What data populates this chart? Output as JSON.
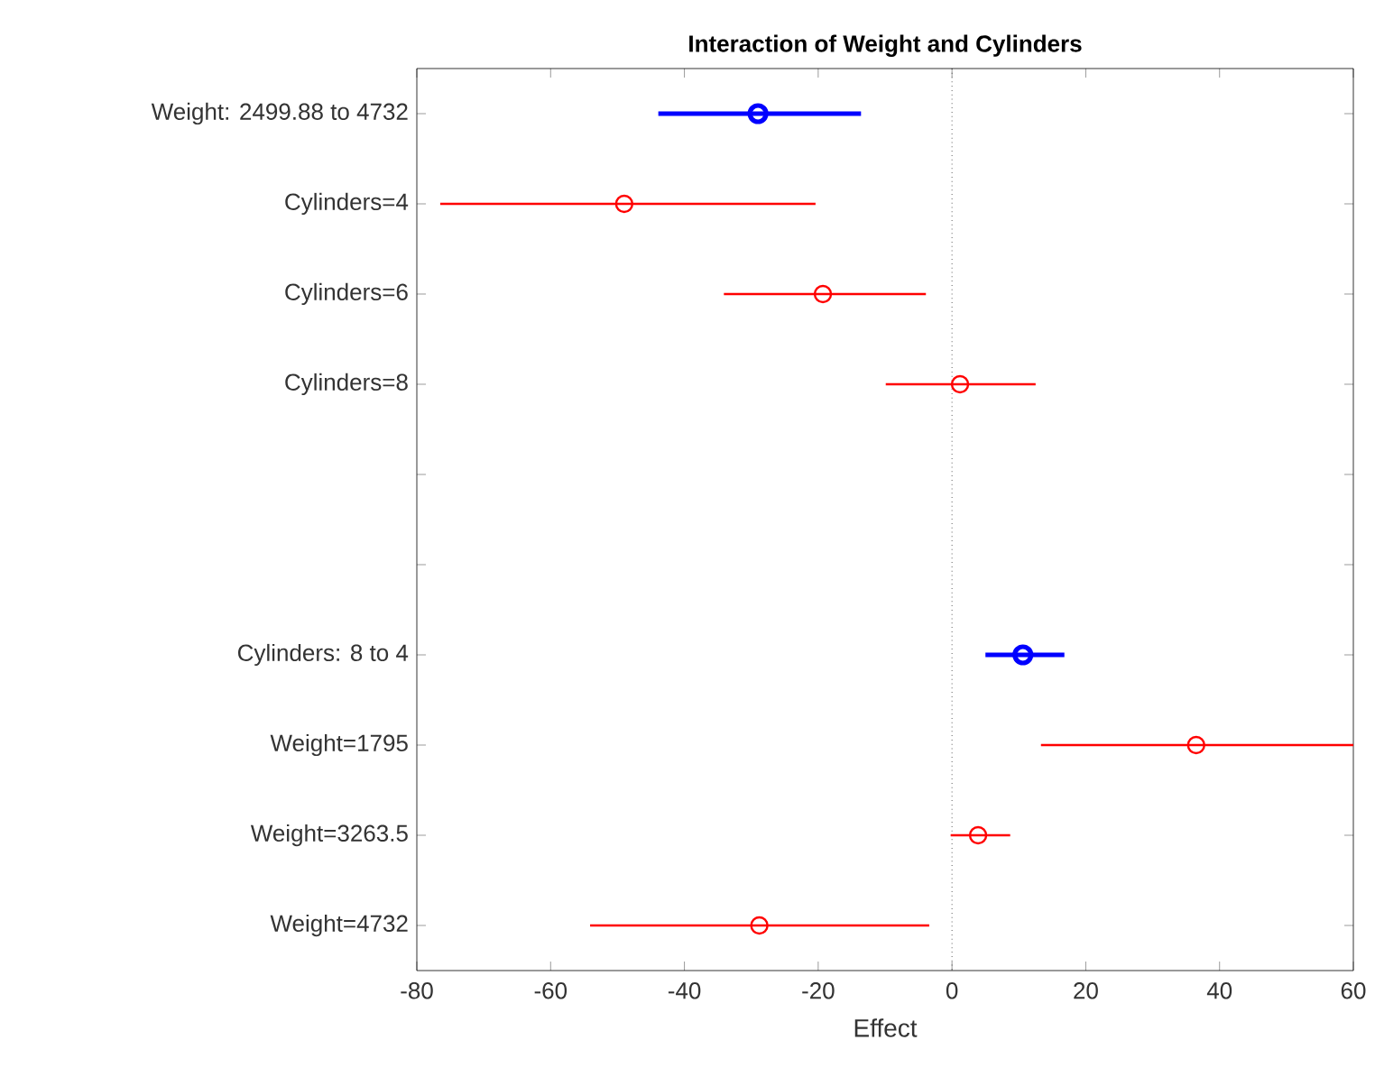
{
  "chart_data": {
    "type": "scatter",
    "orientation": "horizontal",
    "title": "Interaction of Weight and Cylinders",
    "xlabel": "Effect",
    "categories": [
      "Weight: 2499.88 to 4732",
      "Cylinders=4",
      "Cylinders=6",
      "Cylinders=8",
      null,
      null,
      "Cylinders: 8 to 4",
      "Weight=1795",
      "Weight=3263.5",
      "Weight=4732"
    ],
    "series": [
      {
        "color": "#0000ff",
        "values": [
          -29.0,
          null,
          null,
          null,
          null,
          null,
          10.6,
          null,
          null,
          null
        ],
        "errors": [
          [
            -43.9,
            -13.6
          ],
          null,
          null,
          null,
          null,
          null,
          [
            5.0,
            16.8
          ],
          null,
          null,
          null
        ]
      },
      {
        "color": "#ff0000",
        "values": [
          null,
          -49.0,
          -19.3,
          1.2,
          null,
          null,
          null,
          36.5,
          3.9,
          -28.8
        ],
        "errors": [
          null,
          [
            -76.5,
            -20.4
          ],
          [
            -34.1,
            -3.9
          ],
          [
            -9.9,
            12.5
          ],
          null,
          null,
          null,
          [
            13.3,
            60
          ],
          [
            -0.2,
            8.7
          ],
          [
            -54.1,
            -3.4
          ]
        ]
      }
    ],
    "xlim": [
      -80,
      60
    ],
    "xticks": [
      -80,
      -60,
      -40,
      -20,
      0,
      20,
      40,
      60
    ],
    "marker": "circle",
    "grid": false,
    "ref_lines": [
      {
        "axis": "x",
        "value": 0,
        "line_style": "dotted",
        "color": "#000000"
      }
    ]
  }
}
